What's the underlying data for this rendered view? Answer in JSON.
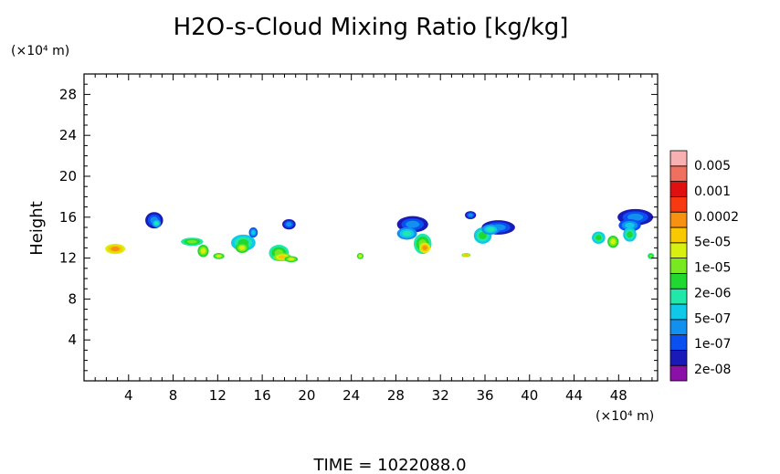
{
  "chart_data": {
    "type": "heatmap",
    "title": "H2O-s-Cloud Mixing Ratio [kg/kg]",
    "ylabel": "Height",
    "y_unit": "(×10⁴ m)",
    "x_unit": "(×10⁴ m)",
    "footer": "TIME  =  1022088.0",
    "xlim": [
      0,
      51.5
    ],
    "ylim": [
      0,
      30
    ],
    "xticks": [
      4,
      8,
      12,
      16,
      20,
      24,
      28,
      32,
      36,
      40,
      44,
      48
    ],
    "yticks": [
      4,
      8,
      12,
      16,
      20,
      24,
      28
    ],
    "grid": false,
    "colorbar": {
      "placement": "right",
      "colors": [
        "#8b10a8",
        "#1a1ab8",
        "#0a50f0",
        "#1290f0",
        "#10c8e8",
        "#20e8a8",
        "#20d830",
        "#78e820",
        "#d8f010",
        "#f8c800",
        "#f89010",
        "#f83810",
        "#e01010",
        "#f07060",
        "#f8b0b0"
      ],
      "labels": [
        "2e-08",
        "1e-07",
        "5e-07",
        "2e-06",
        "1e-05",
        "5e-05",
        "0.0002",
        "0.001",
        "0.005"
      ]
    },
    "clouds": [
      {
        "x": 2.8,
        "y": 12.9,
        "rx": 0.9,
        "ry": 0.5,
        "level": 8
      },
      {
        "x": 6.3,
        "y": 15.7,
        "rx": 0.8,
        "ry": 0.8,
        "level": 1
      },
      {
        "x": 6.5,
        "y": 15.4,
        "rx": 0.4,
        "ry": 0.4,
        "level": 3
      },
      {
        "x": 9.7,
        "y": 13.6,
        "rx": 1.0,
        "ry": 0.4,
        "level": 5
      },
      {
        "x": 10.7,
        "y": 12.7,
        "rx": 0.5,
        "ry": 0.6,
        "level": 6
      },
      {
        "x": 12.1,
        "y": 12.2,
        "rx": 0.5,
        "ry": 0.3,
        "level": 6
      },
      {
        "x": 14.3,
        "y": 13.5,
        "rx": 1.1,
        "ry": 0.8,
        "level": 4
      },
      {
        "x": 14.2,
        "y": 13.0,
        "rx": 0.6,
        "ry": 0.5,
        "level": 6
      },
      {
        "x": 15.2,
        "y": 14.5,
        "rx": 0.4,
        "ry": 0.5,
        "level": 2
      },
      {
        "x": 18.4,
        "y": 15.3,
        "rx": 0.6,
        "ry": 0.5,
        "level": 1
      },
      {
        "x": 17.5,
        "y": 12.5,
        "rx": 0.9,
        "ry": 0.8,
        "level": 5
      },
      {
        "x": 17.8,
        "y": 12.1,
        "rx": 0.8,
        "ry": 0.4,
        "level": 7
      },
      {
        "x": 18.6,
        "y": 11.9,
        "rx": 0.6,
        "ry": 0.3,
        "level": 6
      },
      {
        "x": 24.8,
        "y": 12.2,
        "rx": 0.3,
        "ry": 0.3,
        "level": 6
      },
      {
        "x": 29.5,
        "y": 15.3,
        "rx": 1.4,
        "ry": 0.8,
        "level": 1
      },
      {
        "x": 29.0,
        "y": 14.4,
        "rx": 0.9,
        "ry": 0.6,
        "level": 3
      },
      {
        "x": 30.4,
        "y": 13.4,
        "rx": 0.8,
        "ry": 1.0,
        "level": 5
      },
      {
        "x": 30.6,
        "y": 13.0,
        "rx": 0.5,
        "ry": 0.5,
        "level": 8
      },
      {
        "x": 34.7,
        "y": 16.2,
        "rx": 0.5,
        "ry": 0.4,
        "level": 1
      },
      {
        "x": 34.3,
        "y": 12.3,
        "rx": 0.4,
        "ry": 0.2,
        "level": 7
      },
      {
        "x": 35.8,
        "y": 14.2,
        "rx": 0.8,
        "ry": 0.8,
        "level": 4
      },
      {
        "x": 37.2,
        "y": 15.0,
        "rx": 1.5,
        "ry": 0.7,
        "level": 1
      },
      {
        "x": 36.5,
        "y": 14.8,
        "rx": 0.8,
        "ry": 0.5,
        "level": 3
      },
      {
        "x": 46.2,
        "y": 14.0,
        "rx": 0.6,
        "ry": 0.6,
        "level": 4
      },
      {
        "x": 47.5,
        "y": 13.6,
        "rx": 0.5,
        "ry": 0.6,
        "level": 6
      },
      {
        "x": 49.5,
        "y": 16.0,
        "rx": 1.6,
        "ry": 0.8,
        "level": 1
      },
      {
        "x": 49.0,
        "y": 15.2,
        "rx": 1.0,
        "ry": 0.6,
        "level": 2
      },
      {
        "x": 49.0,
        "y": 14.3,
        "rx": 0.6,
        "ry": 0.7,
        "level": 4
      },
      {
        "x": 50.9,
        "y": 12.2,
        "rx": 0.3,
        "ry": 0.3,
        "level": 5
      }
    ]
  }
}
